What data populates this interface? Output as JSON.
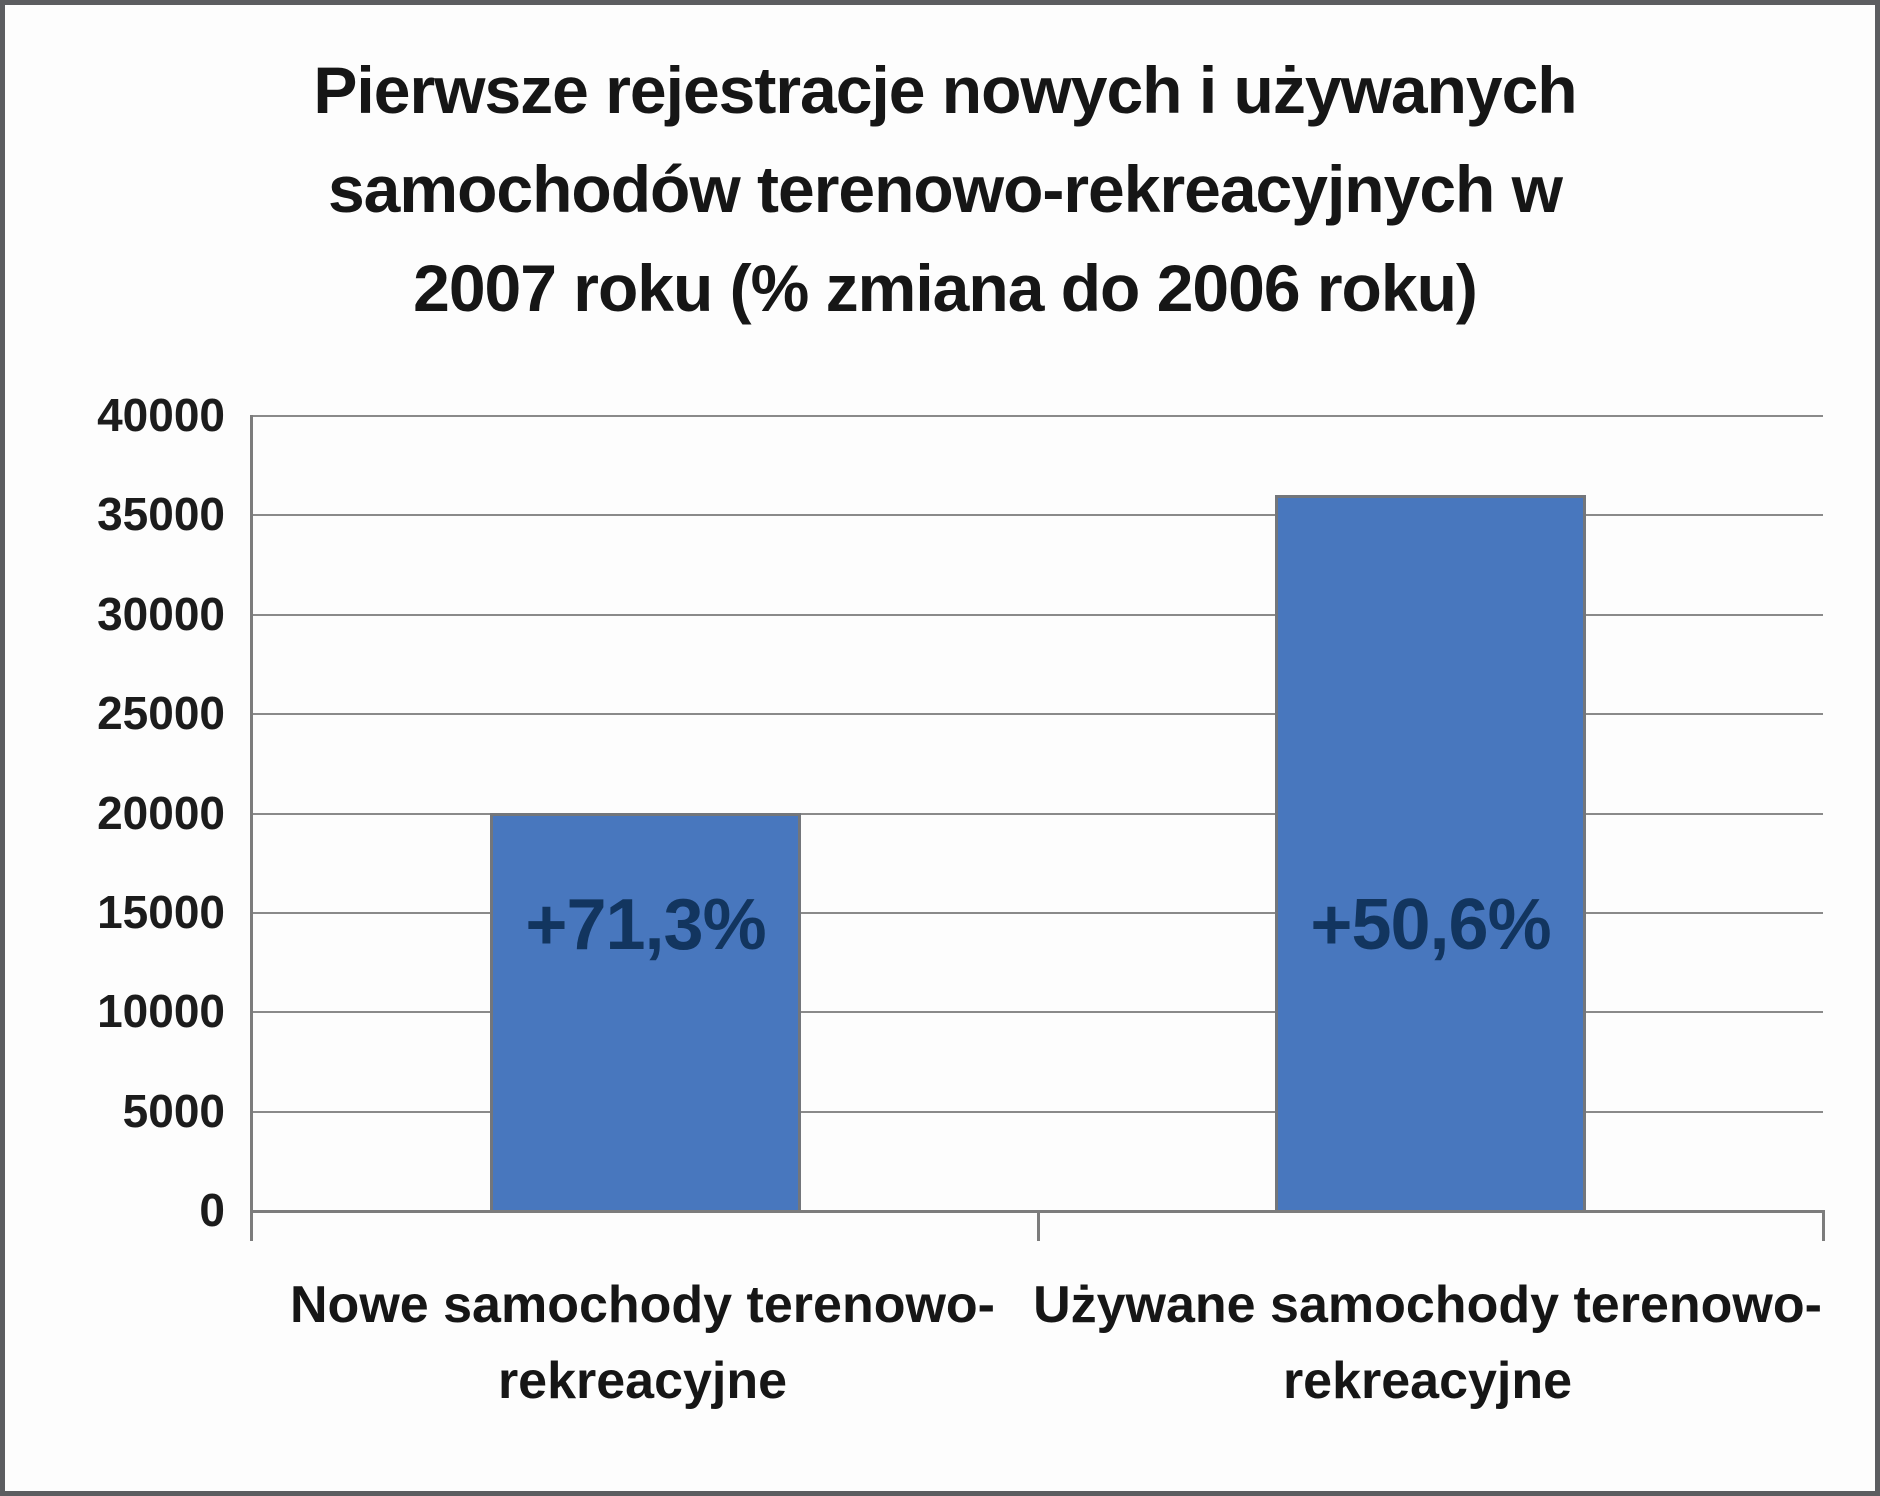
{
  "chart_data": {
    "type": "bar",
    "title": "Pierwsze rejestracje nowych i używanych samochodów terenowo-rekreacyjnych w 2007 roku (% zmiana do 2006 roku)",
    "title_lines": [
      "Pierwsze rejestracje nowych i używanych",
      "samochodów terenowo-rekreacyjnych w",
      "2007 roku (% zmiana do 2006 roku)"
    ],
    "categories": [
      "Nowe samochody terenowo-rekreacyjne",
      "Używane samochody terenowo-rekreacyjne"
    ],
    "values": [
      20000,
      36000
    ],
    "bar_labels": [
      "+71,3%",
      "+50,6%"
    ],
    "xlabel": "",
    "ylabel": "",
    "ylim": [
      0,
      40000
    ],
    "ytick_step": 5000,
    "yticks": [
      "40000",
      "35000",
      "30000",
      "25000",
      "20000",
      "15000",
      "10000",
      "5000",
      "0"
    ],
    "grid": true,
    "legend": false,
    "colors": {
      "bar_fill": "#4877be",
      "bar_border": "#73767b",
      "bar_label_text": "#12355f",
      "gridline": "#8a8a8a",
      "axis": "#7c7c7c",
      "text": "#161616",
      "background": "#fdfdfd",
      "frame_border": "#5c5d60"
    }
  }
}
